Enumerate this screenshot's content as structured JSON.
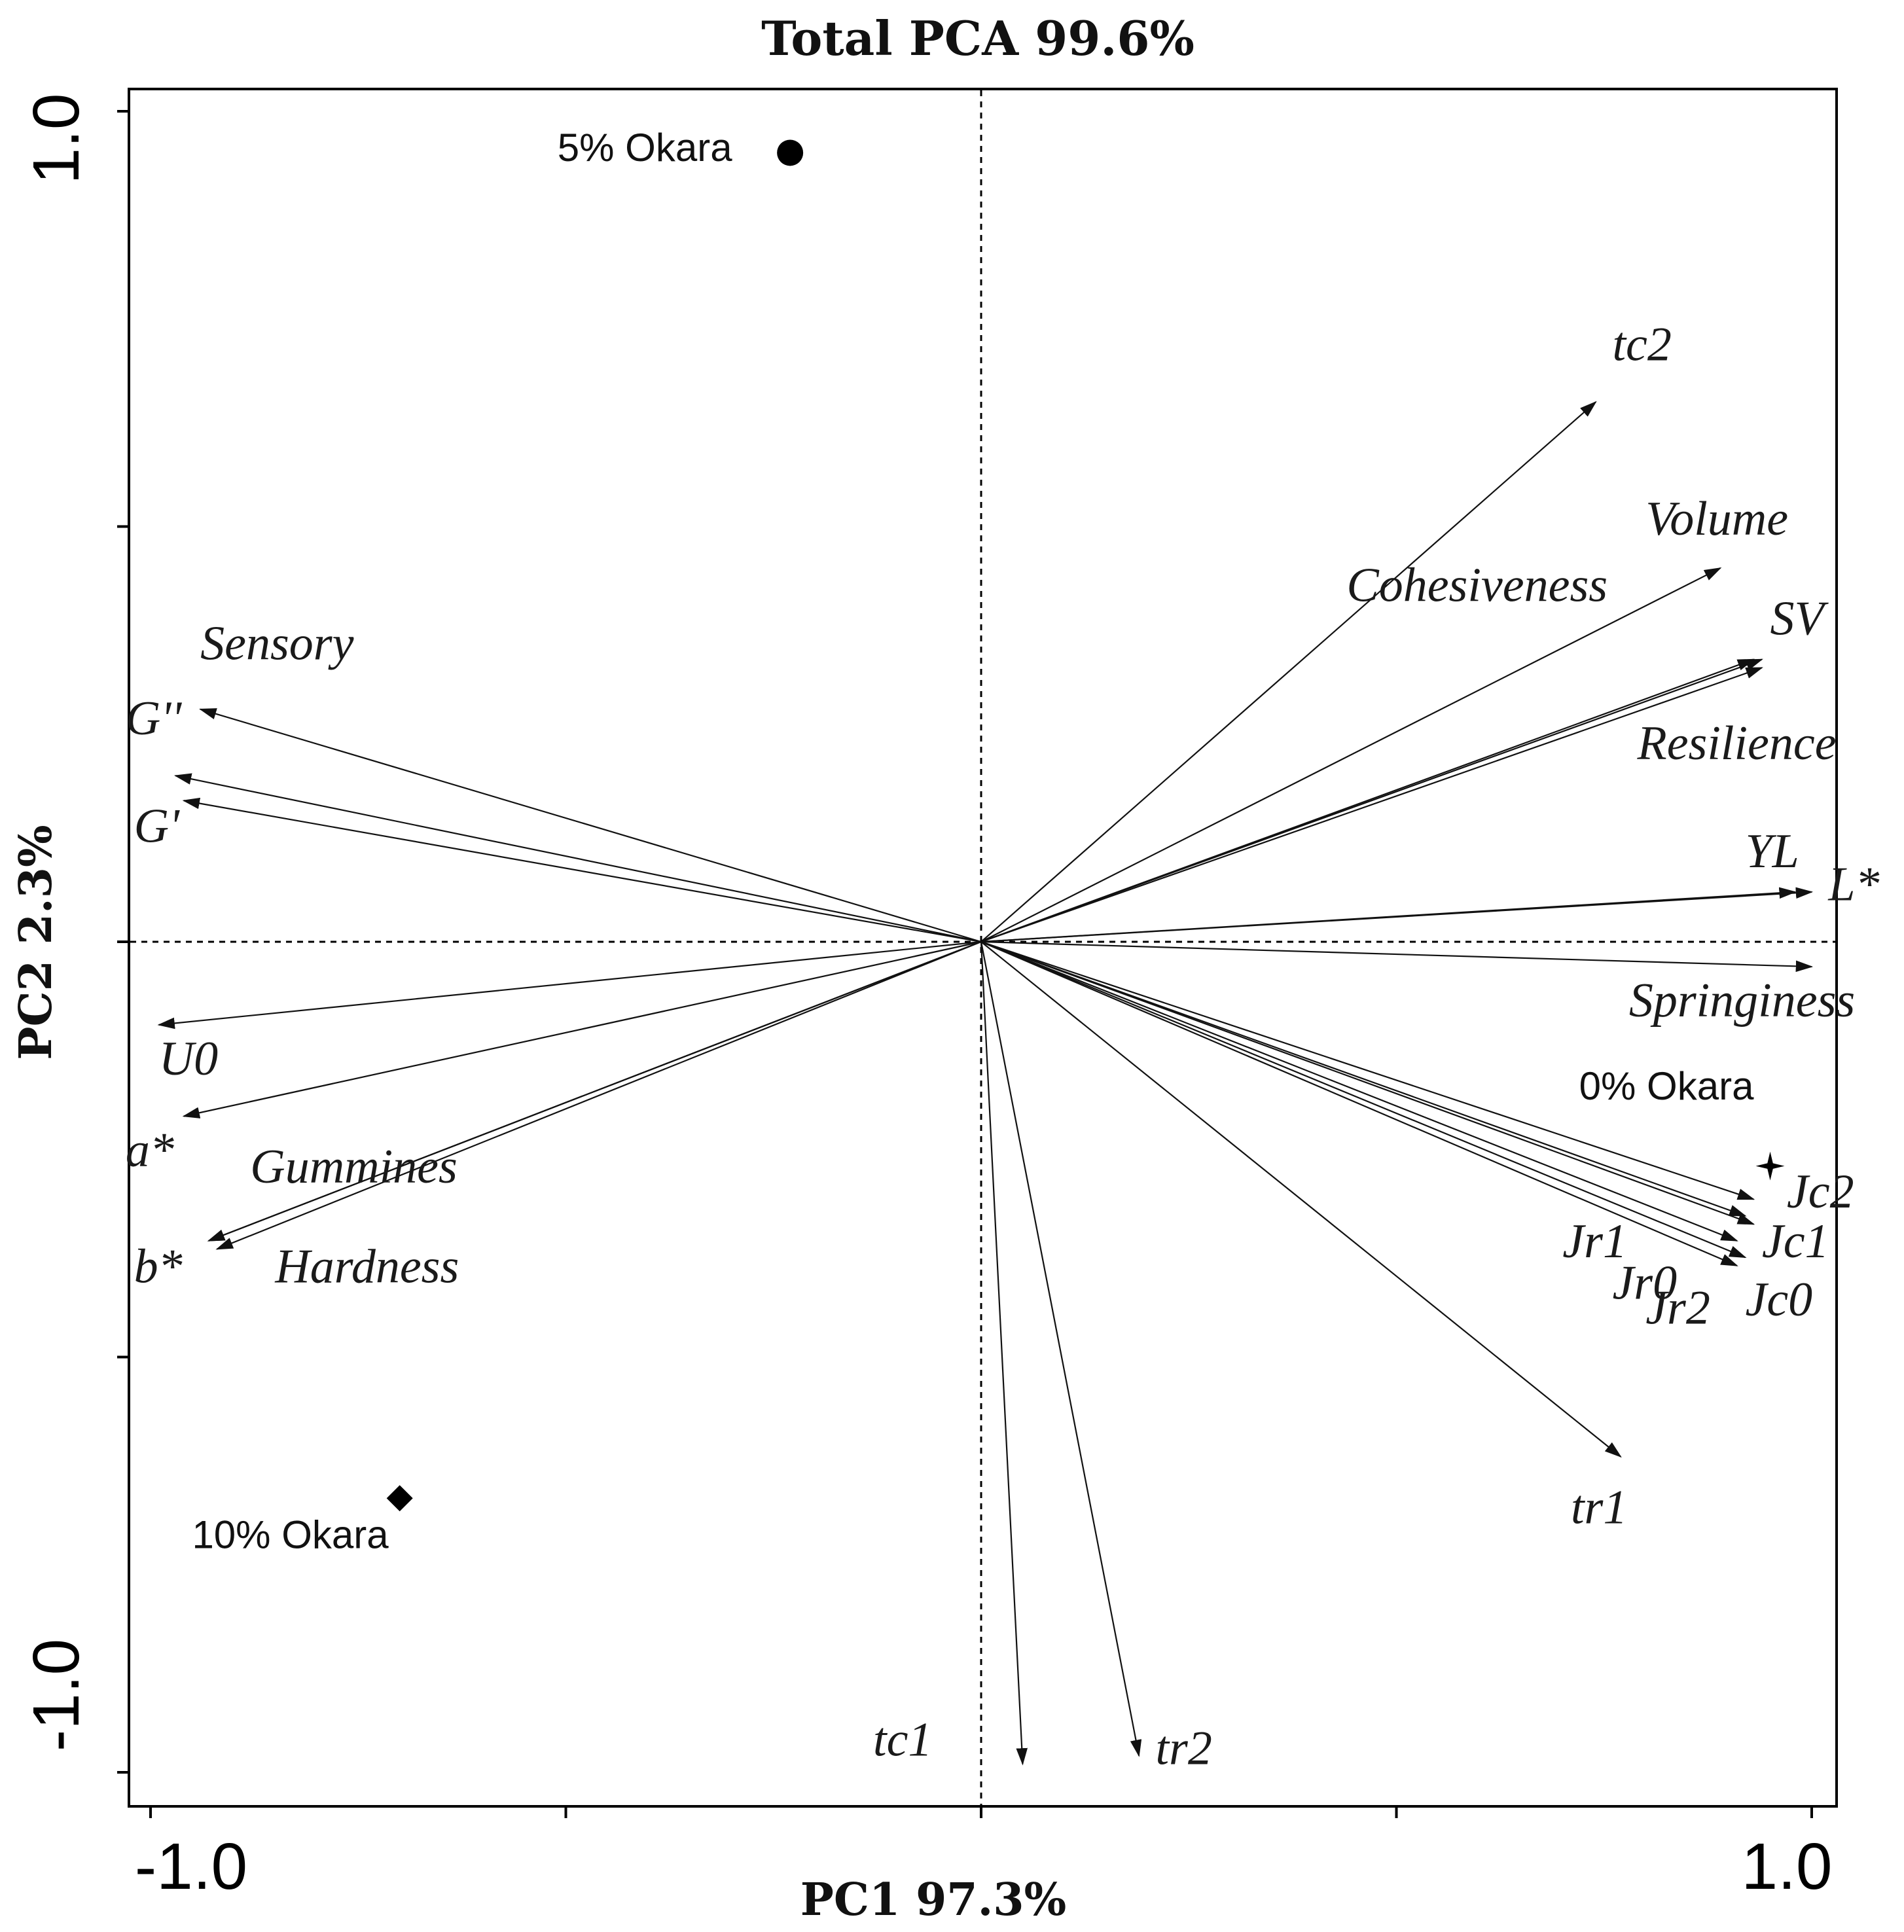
{
  "chart_data": {
    "type": "scatter",
    "subtype": "pca-biplot",
    "title": "Total PCA 99.6%",
    "xlabel": "PC1 97.3%",
    "ylabel": "PC2 2.3%",
    "xlim": [
      -1.0,
      1.0
    ],
    "ylim": [
      -1.0,
      1.0
    ],
    "x_tick_labels": [
      "-1.0",
      "1.0"
    ],
    "y_tick_labels": [
      "1.0",
      "-1.0"
    ],
    "x_ticks": [
      -1.0,
      -0.5,
      0.0,
      0.5,
      1.0
    ],
    "y_ticks": [
      -1.0,
      -0.5,
      0.0,
      0.5,
      1.0
    ],
    "reference_lines": {
      "x": 0,
      "y": 0
    },
    "loadings": [
      {
        "name": "tc2",
        "x": 0.74,
        "y": 0.65
      },
      {
        "name": "Volume",
        "x": 0.89,
        "y": 0.45
      },
      {
        "name": "Cohesiveness",
        "x": 0.93,
        "y": 0.34
      },
      {
        "name": "SV",
        "x": 0.94,
        "y": 0.34
      },
      {
        "name": "Resilience",
        "x": 0.94,
        "y": 0.33
      },
      {
        "name": "YL",
        "x": 0.98,
        "y": 0.06
      },
      {
        "name": "L*",
        "x": 1.0,
        "y": 0.06
      },
      {
        "name": "Springiness",
        "x": 1.0,
        "y": -0.03
      },
      {
        "name": "Jc2",
        "x": 0.93,
        "y": -0.31
      },
      {
        "name": "Jc1",
        "x": 0.93,
        "y": -0.34
      },
      {
        "name": "Jc0",
        "x": 0.92,
        "y": -0.38
      },
      {
        "name": "Jr1",
        "x": 0.92,
        "y": -0.33
      },
      {
        "name": "Jr0",
        "x": 0.91,
        "y": -0.36
      },
      {
        "name": "Jr2",
        "x": 0.91,
        "y": -0.39
      },
      {
        "name": "tr1",
        "x": 0.77,
        "y": -0.62
      },
      {
        "name": "tc1",
        "x": 0.05,
        "y": -0.99
      },
      {
        "name": "tr2",
        "x": 0.19,
        "y": -0.98
      },
      {
        "name": "Sensory",
        "x": -0.94,
        "y": 0.28
      },
      {
        "name": "G''",
        "x": -0.97,
        "y": 0.2
      },
      {
        "name": "G'",
        "x": -0.96,
        "y": 0.17
      },
      {
        "name": "U0",
        "x": -0.99,
        "y": -0.1
      },
      {
        "name": "a*",
        "x": -0.96,
        "y": -0.21
      },
      {
        "name": "Gummines",
        "x": -0.93,
        "y": -0.36
      },
      {
        "name": "b*",
        "x": -0.92,
        "y": -0.37
      },
      {
        "name": "Hardness",
        "x": -0.93,
        "y": -0.36
      }
    ],
    "variable_labels": [
      {
        "text": "tc2",
        "x": 0.76,
        "y": 0.7
      },
      {
        "text": "Volume",
        "x": 0.8,
        "y": 0.49
      },
      {
        "text": "Cohesiveness",
        "x": 0.44,
        "y": 0.41
      },
      {
        "text": "SV",
        "x": 0.95,
        "y": 0.37
      },
      {
        "text": "Resilience",
        "x": 0.79,
        "y": 0.22
      },
      {
        "text": "YL",
        "x": 0.92,
        "y": 0.09
      },
      {
        "text": "L*",
        "x": 1.02,
        "y": 0.05
      },
      {
        "text": "Springiness",
        "x": 0.78,
        "y": -0.09
      },
      {
        "text": "Jc2",
        "x": 0.97,
        "y": -0.32
      },
      {
        "text": "Jc1",
        "x": 0.94,
        "y": -0.38
      },
      {
        "text": "Jc0",
        "x": 0.92,
        "y": -0.45
      },
      {
        "text": "Jr1",
        "x": 0.7,
        "y": -0.38
      },
      {
        "text": "Jr0",
        "x": 0.76,
        "y": -0.43
      },
      {
        "text": "Jr2",
        "x": 0.8,
        "y": -0.46
      },
      {
        "text": "tr1",
        "x": 0.71,
        "y": -0.7
      },
      {
        "text": "tc1",
        "x": -0.13,
        "y": -0.98
      },
      {
        "text": "tr2",
        "x": 0.21,
        "y": -0.99
      },
      {
        "text": "Sensory",
        "x": -0.94,
        "y": 0.34
      },
      {
        "text": "G''",
        "x": -1.03,
        "y": 0.25
      },
      {
        "text": "G'",
        "x": -1.02,
        "y": 0.12
      },
      {
        "text": "U0",
        "x": -0.99,
        "y": -0.16
      },
      {
        "text": "a*",
        "x": -1.03,
        "y": -0.27
      },
      {
        "text": "Gummines",
        "x": -0.88,
        "y": -0.29
      },
      {
        "text": "b*",
        "x": -1.02,
        "y": -0.41
      },
      {
        "text": "Hardness",
        "x": -0.85,
        "y": -0.41
      }
    ],
    "samples": [
      {
        "name": "5% Okara",
        "x": -0.23,
        "y": 0.95,
        "marker": "circle"
      },
      {
        "name": "0% Okara",
        "x": 0.95,
        "y": -0.27,
        "marker": "star"
      },
      {
        "name": "10% Okara",
        "x": -0.7,
        "y": -0.67,
        "marker": "diamond"
      }
    ],
    "sample_labels": [
      {
        "text": "5% Okara",
        "x": -0.51,
        "y": 0.94
      },
      {
        "text": "0% Okara",
        "x": 0.72,
        "y": -0.19
      },
      {
        "text": "10% Okara",
        "x": -0.95,
        "y": -0.73
      }
    ]
  }
}
